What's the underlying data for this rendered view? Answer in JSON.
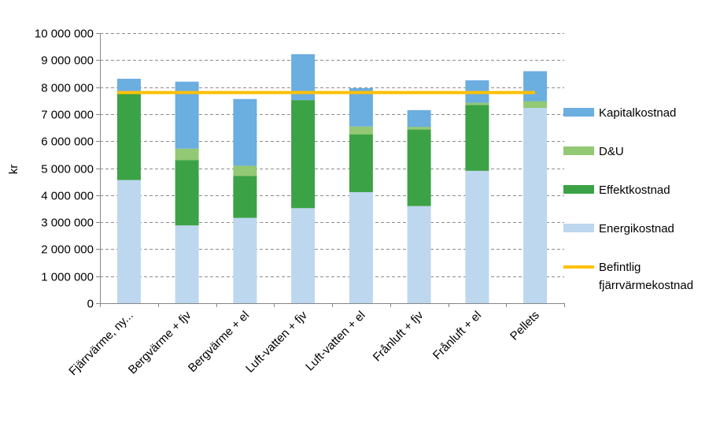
{
  "chart_data": {
    "type": "bar",
    "stacked": true,
    "title": "",
    "xlabel": "",
    "ylabel": "kr",
    "ylim": [
      0,
      10000000
    ],
    "yticks": [
      0,
      1000000,
      2000000,
      3000000,
      4000000,
      5000000,
      6000000,
      7000000,
      8000000,
      9000000,
      10000000
    ],
    "ytick_labels": [
      "0",
      "1 000 000",
      "2 000 000",
      "3 000 000",
      "4 000 000",
      "5 000 000",
      "6 000 000",
      "7 000 000",
      "8 000 000",
      "9 000 000",
      "10 000 000"
    ],
    "grid": true,
    "legend_position": "right",
    "categories": [
      "Fjärrvärme, ny...",
      "Bergvärme + fjv",
      "Bergvärme + el",
      "Luft-vatten + fjv",
      "Luft-vatten + el",
      "Frånluft + fjv",
      "Frånluft + el",
      "Pellets"
    ],
    "series": [
      {
        "name": "Energikostnad",
        "color": "#bdd7ee",
        "values": [
          4560000,
          2880000,
          3160000,
          3520000,
          4110000,
          3600000,
          4900000,
          7230000
        ]
      },
      {
        "name": "Effektkostnad",
        "color": "#3ca246",
        "values": [
          3210000,
          2420000,
          1550000,
          4000000,
          2140000,
          2830000,
          2440000,
          0
        ]
      },
      {
        "name": "D&U",
        "color": "#93c874",
        "values": [
          0,
          420000,
          380000,
          0,
          290000,
          100000,
          80000,
          250000
        ]
      },
      {
        "name": "Kapitalkostnad",
        "color": "#6baee0",
        "values": [
          540000,
          2480000,
          2470000,
          1700000,
          1420000,
          620000,
          830000,
          1110000
        ]
      }
    ],
    "line": {
      "name": "Befintlig fjärrvärmekostnad",
      "color": "#ffc000",
      "value": 7800000,
      "legend_lines": [
        "Befintlig",
        "fjärrvärmekostnad"
      ]
    },
    "legend_order": [
      "Kapitalkostnad",
      "D&U",
      "Effektkostnad",
      "Energikostnad"
    ]
  }
}
